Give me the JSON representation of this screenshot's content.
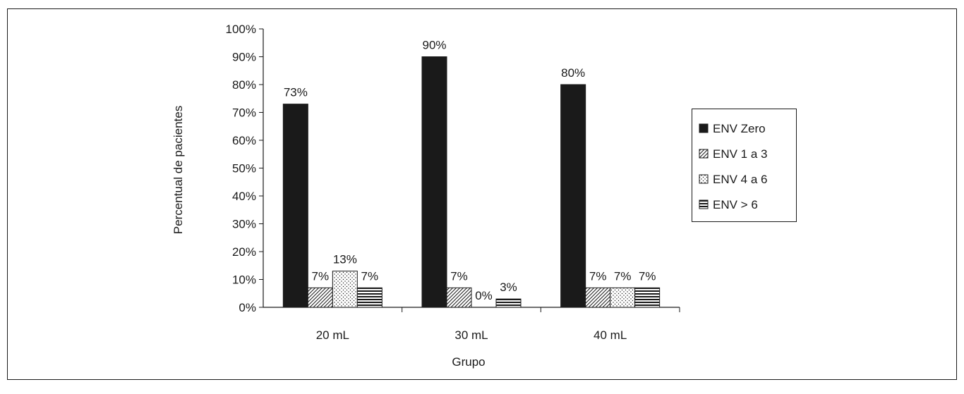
{
  "chart_data": {
    "type": "bar",
    "xlabel": "Grupo",
    "ylabel": "Percentual de pacientes",
    "categories": [
      "20 mL",
      "30 mL",
      "40 mL"
    ],
    "ylim": [
      0,
      100
    ],
    "yticks": [
      "0%",
      "10%",
      "20%",
      "30%",
      "40%",
      "50%",
      "60%",
      "70%",
      "80%",
      "90%",
      "100%"
    ],
    "grid": false,
    "legend_position": "right",
    "series": [
      {
        "name": "ENV Zero",
        "pattern": "solid",
        "values": [
          73,
          90,
          80
        ],
        "labels": [
          "73%",
          "90%",
          "80%"
        ]
      },
      {
        "name": "ENV 1 a 3",
        "pattern": "diagonal",
        "values": [
          7,
          7,
          7
        ],
        "labels": [
          "7%",
          "7%",
          "7%"
        ]
      },
      {
        "name": "ENV 4 a 6",
        "pattern": "dots",
        "values": [
          13,
          0,
          7
        ],
        "labels": [
          "13%",
          "0%",
          "7%"
        ]
      },
      {
        "name": "ENV > 6",
        "pattern": "horizontal",
        "values": [
          7,
          3,
          7
        ],
        "labels": [
          "7%",
          "3%",
          "7%"
        ]
      }
    ],
    "colors": {
      "ink": "#1a1a1a",
      "background": "#ffffff"
    }
  }
}
